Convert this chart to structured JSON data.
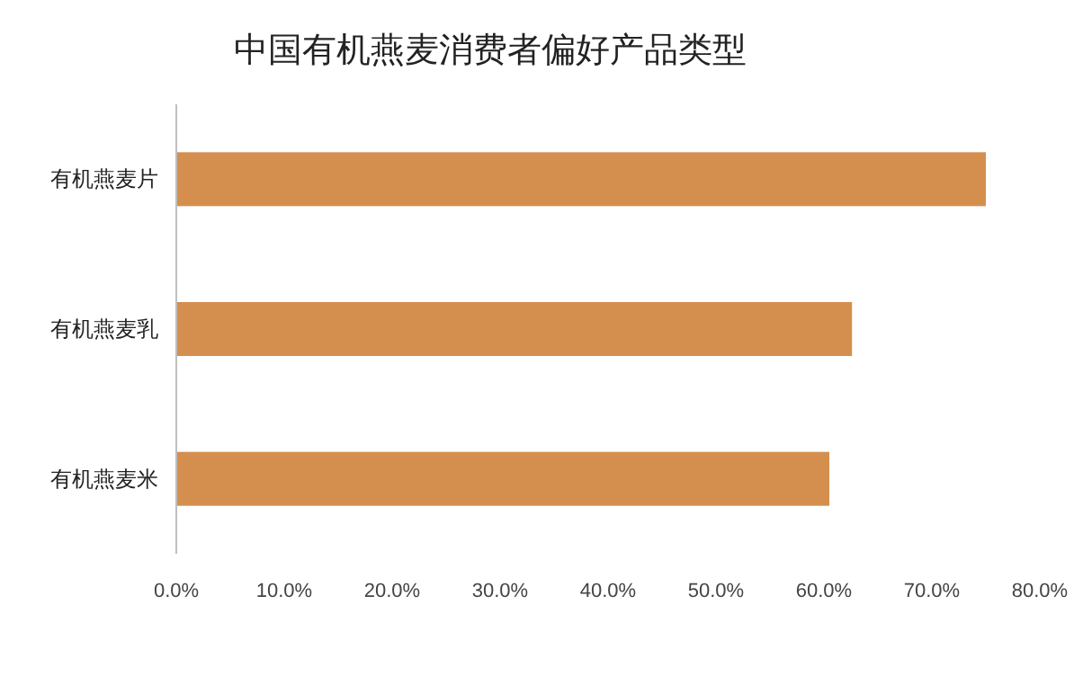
{
  "chart_data": {
    "type": "bar",
    "orientation": "horizontal",
    "title": "中国有机燕麦消费者偏好产品类型",
    "categories": [
      "有机燕麦片",
      "有机燕麦乳",
      "有机燕麦米"
    ],
    "values": [
      75.0,
      62.6,
      60.5
    ],
    "color": "#d48f4f",
    "xlim": [
      0,
      80
    ],
    "xticks": [
      {
        "value": 0,
        "label": "0.0%"
      },
      {
        "value": 10,
        "label": "10.0%"
      },
      {
        "value": 20,
        "label": "20.0%"
      },
      {
        "value": 30,
        "label": "30.0%"
      },
      {
        "value": 40,
        "label": "40.0%"
      },
      {
        "value": 50,
        "label": "50.0%"
      },
      {
        "value": 60,
        "label": "60.0%"
      },
      {
        "value": 70,
        "label": "70.0%"
      },
      {
        "value": 80,
        "label": "80.0%"
      }
    ]
  }
}
